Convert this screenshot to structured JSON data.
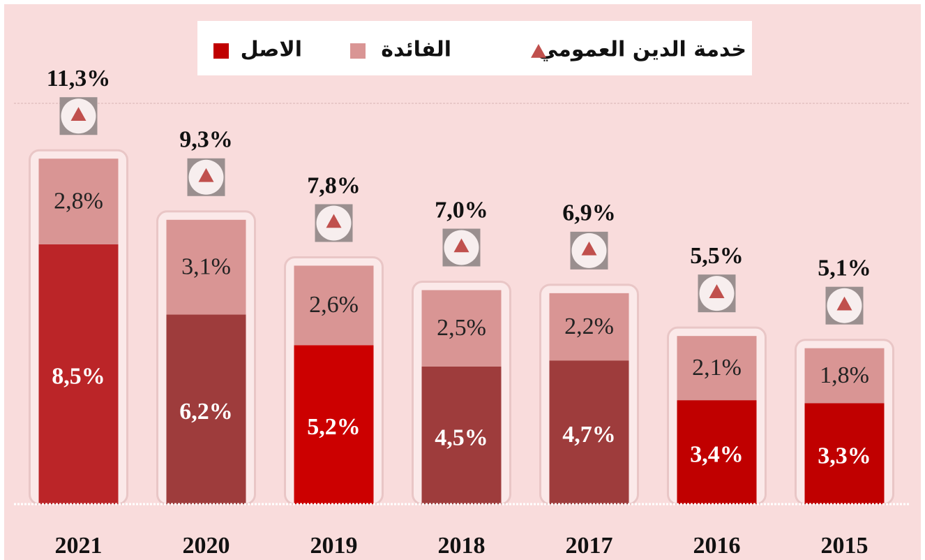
{
  "chart_data": {
    "type": "stacked_bar",
    "categories": [
      "2021",
      "2020",
      "2019",
      "2018",
      "2017",
      "2016",
      "2015"
    ],
    "series": [
      {
        "name": "الاصل",
        "color": "#c00000",
        "colors": [
          "#bb2528",
          "#9e3c3c",
          "#cc0000",
          "#9e3c3c",
          "#9e3c3c",
          "#c00000",
          "#c00000"
        ],
        "values": [
          8.5,
          6.2,
          5.2,
          4.5,
          4.7,
          3.4,
          3.3
        ],
        "value_labels": [
          "8,5%",
          "6,2%",
          "5,2%",
          "4,5%",
          "4,7%",
          "3,4%",
          "3,3%"
        ]
      },
      {
        "name": "الفائدة",
        "color": "#d99594",
        "values": [
          2.8,
          3.1,
          2.6,
          2.5,
          2.2,
          2.1,
          1.8
        ],
        "value_labels": [
          "2,8%",
          "3,1%",
          "2,6%",
          "2,5%",
          "2,2%",
          "2,1%",
          "1,8%"
        ]
      }
    ],
    "total": {
      "name": "خدمة الدين العمومي",
      "color": "#c0504d",
      "values": [
        11.3,
        9.3,
        7.8,
        7.0,
        6.9,
        5.5,
        5.1
      ],
      "value_labels": [
        "11,3%",
        "9,3%",
        "7,8%",
        "7,0%",
        "6,9%",
        "5,5%",
        "5,1%"
      ]
    },
    "ylim": [
      0,
      14
    ]
  }
}
